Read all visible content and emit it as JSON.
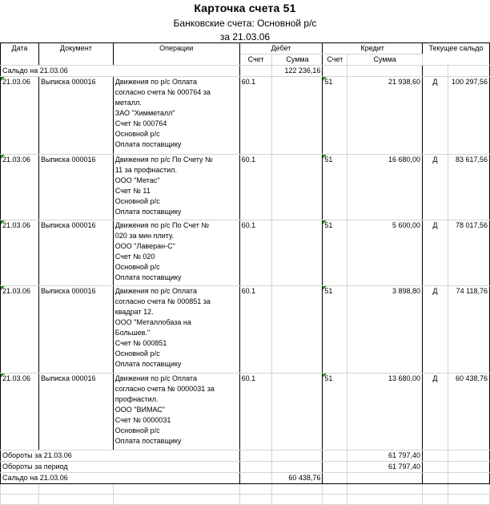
{
  "header": {
    "title": "Карточка счета 51",
    "subtitle": "Банковские счета: Основной р/с",
    "period": "за 21.03.06"
  },
  "columns": {
    "date": "Дата",
    "document": "Документ",
    "operations": "Операции",
    "debit": "Дебет",
    "credit": "Кредит",
    "balance": "Текущее сальдо",
    "account": "Счет",
    "amount": "Сумма"
  },
  "opening": {
    "label": "Сальдо на 21.03.06",
    "debit_amount": "122 236,16"
  },
  "entries": [
    {
      "date": "21.03.06",
      "document": "Выписка 000016",
      "lines": [
        "Движения по р/с Оплата",
        "согласно счета № 000764 за",
        "металл.",
        "ЗАО \"Химметалл\"",
        "Счет № 000764",
        "Основной р/с",
        "Оплата поставщику"
      ],
      "debit_account": "60.1",
      "credit_account": "51",
      "credit_amount": "21 938,60",
      "balance_side": "Д",
      "balance": "100 297,56"
    },
    {
      "date": "21.03.06",
      "document": "Выписка 000016",
      "lines": [
        "Движения по р/с По Счету  №",
        "11 за профнастил.",
        "ООО \"Метас\"",
        "Счет № 11",
        "Основной р/с",
        "Оплата поставщику"
      ],
      "debit_account": "60.1",
      "credit_account": "51",
      "credit_amount": "16 680,00",
      "balance_side": "Д",
      "balance": "83 617,56"
    },
    {
      "date": "21.03.06",
      "document": "Выписка 000016",
      "lines": [
        "Движения по р/с По Счет №",
        "020 за мин плиту.",
        "ООО \"Лаверан-С\"",
        "Счет № 020",
        "Основной р/с",
        "Оплата поставщику"
      ],
      "debit_account": "60.1",
      "credit_account": "51",
      "credit_amount": "5 600,00",
      "balance_side": "Д",
      "balance": "78 017,56"
    },
    {
      "date": "21.03.06",
      "document": "Выписка 000016",
      "lines": [
        "Движения по р/с Оплата",
        "согласно счета № 000851 за",
        "квадрат 12.",
        "ООО \"Металлобаза на",
        "Большев.\"",
        "Счет № 000851",
        "Основной р/с",
        "Оплата поставщику"
      ],
      "debit_account": "60.1",
      "credit_account": "51",
      "credit_amount": "3 898,80",
      "balance_side": "Д",
      "balance": "74 118,76"
    },
    {
      "date": "21.03.06",
      "document": "Выписка 000016",
      "lines": [
        "Движения по р/с Оплата",
        "согласно счета № 0000031 за",
        "профнастил.",
        "ООО \"ВИМАС\"",
        "Счет № 0000031",
        "Основной р/с",
        "Оплата поставщику"
      ],
      "debit_account": "60.1",
      "credit_account": "51",
      "credit_amount": "13 680,00",
      "balance_side": "Д",
      "balance": "60 438,76"
    }
  ],
  "turnover_day": {
    "label": "Обороты за 21.03.06",
    "credit_amount": "61 797,40"
  },
  "turnover_period": {
    "label": "Обороты за период",
    "credit_amount": "61 797,40"
  },
  "closing": {
    "label": "Сальдо на 21.03.06",
    "debit_amount": "60 438,76"
  },
  "colors": {
    "indicator": "#2e8b2e",
    "gridline": "#d4d4d4",
    "border": "#000000"
  }
}
